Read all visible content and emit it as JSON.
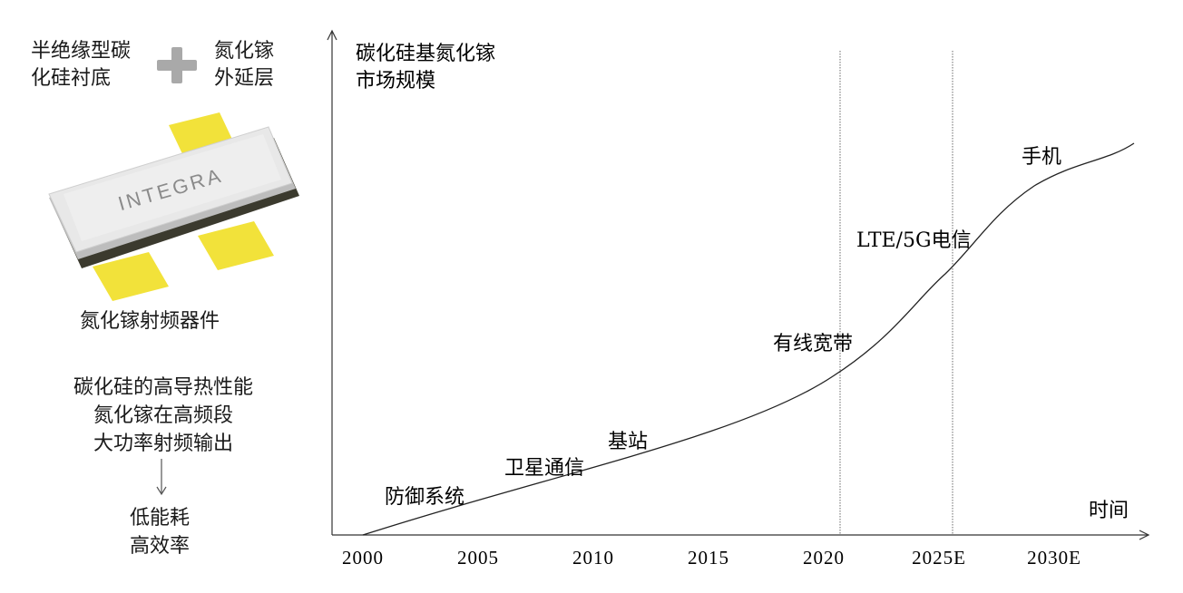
{
  "left_panel": {
    "substrate": "半绝缘型碳\n化硅衬底",
    "epi": "氮化镓\n外延层",
    "device_logo": "INTEGRA",
    "device_caption": "氮化镓射频器件",
    "properties": "碳化硅的高导热性能\n氮化镓在高频段\n大功率射频输出",
    "benefits": "低能耗\n高效率",
    "colors": {
      "pad": "#f2e23a",
      "body": "#e6e6e6",
      "plus": "#a9a9a9"
    }
  },
  "chart_data": {
    "type": "line",
    "ylabel": "碳化硅基氮化镓\n市场规模",
    "xlabel": "时间",
    "x_ticks": [
      "2000",
      "2005",
      "2010",
      "2015",
      "2020",
      "2025E",
      "2030E"
    ],
    "vertical_reference_lines": [
      "2020",
      "2025E"
    ],
    "milestones": [
      {
        "label": "防御系统",
        "x": 2001.5
      },
      {
        "label": "卫星通信",
        "x": 2006.2
      },
      {
        "label": "基站",
        "x": 2011
      },
      {
        "label": "有线宽带",
        "x": 2018.5
      },
      {
        "label": "LTE/5G电信",
        "x": 2023
      },
      {
        "label": "手机",
        "x": 2029.3
      }
    ]
  }
}
